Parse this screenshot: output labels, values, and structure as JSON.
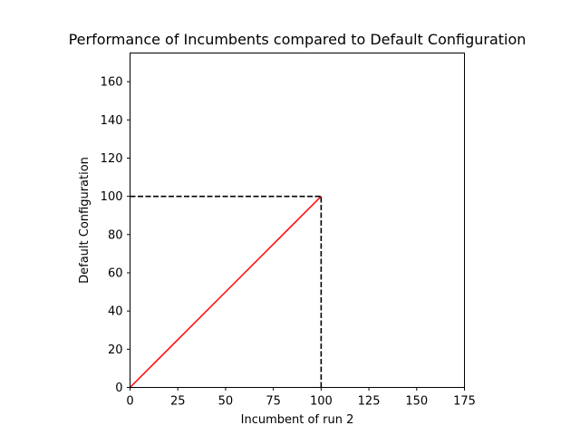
{
  "chart_data": {
    "type": "line",
    "title": "Performance of Incumbents compared to Default Configuration",
    "xlabel": "Incumbent of run 2",
    "ylabel": "Default Configuration",
    "xlim": [
      0,
      175
    ],
    "ylim": [
      0,
      175
    ],
    "xticks": [
      0,
      25,
      50,
      75,
      100,
      125,
      150,
      175
    ],
    "yticks": [
      0,
      20,
      40,
      60,
      80,
      100,
      120,
      140,
      160
    ],
    "grid": false,
    "legend": "none",
    "series": [
      {
        "style": "solid",
        "color": "#ff0000",
        "x": [
          0,
          100
        ],
        "y": [
          0,
          100
        ]
      },
      {
        "style": "dashed",
        "color": "#000000",
        "x": [
          0,
          100
        ],
        "y": [
          100,
          100
        ]
      },
      {
        "style": "dashed",
        "color": "#000000",
        "x": [
          100,
          100
        ],
        "y": [
          0,
          100
        ]
      }
    ]
  }
}
